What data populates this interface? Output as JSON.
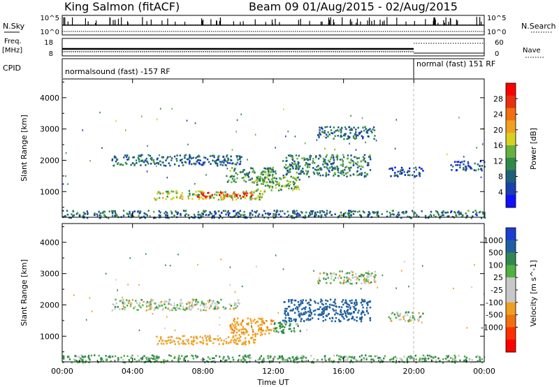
{
  "header": {
    "station": "King Salmon (fitACF)",
    "beam_info": "Beam 09 01/Aug/2015 - 02/Aug/2015"
  },
  "noise_panel": {
    "left_label": "N.Sky",
    "right_label": "N.Search",
    "tick_top": "10^5",
    "tick_bottom": "10^0"
  },
  "freq_panel": {
    "left_label_line1": "Freq.",
    "left_label_line2": "[MHz]",
    "right_label": "Nave",
    "left_ticks": [
      "18",
      "8"
    ],
    "right_ticks": [
      "60",
      "0"
    ]
  },
  "cpid_panel": {
    "label": "CPID",
    "modes": [
      {
        "start_hour": 0,
        "end_hour": 20,
        "text": "normalsound (fast) -157 RF"
      },
      {
        "start_hour": 20,
        "end_hour": 24,
        "text": "normal (fast) 151 RF"
      }
    ]
  },
  "chart_data": [
    {
      "type": "heatmap",
      "title": "",
      "parameter": "Power",
      "ylabel": "Slant Range [km]",
      "xlabel": "Time UT",
      "xlim": [
        0,
        24
      ],
      "ylim": [
        180,
        4600
      ],
      "x_ticks": [
        "00:00",
        "04:00",
        "08:00",
        "12:00",
        "16:00",
        "20:00",
        "00:00"
      ],
      "y_ticks": [
        1000,
        2000,
        3000,
        4000
      ],
      "colorbar": {
        "label": "Power [dB]",
        "ticks": [
          4,
          8,
          12,
          16,
          20,
          24,
          28
        ],
        "colors": [
          "#1010ff",
          "#1a3fb0",
          "#205f78",
          "#2f8a4a",
          "#66b040",
          "#d8d020",
          "#f0a020",
          "#f07010",
          "#e83010",
          "#ff0000"
        ]
      },
      "echo_regions": [
        {
          "t_start": 5.2,
          "t_end": 11.5,
          "range_start": 760,
          "range_end": 1050,
          "value": 16
        },
        {
          "t_start": 7.6,
          "t_end": 10.8,
          "range_start": 850,
          "range_end": 1000,
          "value": 28
        },
        {
          "t_start": 11.0,
          "t_end": 13.5,
          "range_start": 1050,
          "range_end": 1500,
          "value": 14
        },
        {
          "t_start": 2.8,
          "t_end": 10.2,
          "range_start": 1850,
          "range_end": 2200,
          "value": 8
        },
        {
          "t_start": 9.3,
          "t_end": 12.2,
          "range_start": 1300,
          "range_end": 1800,
          "value": 12
        },
        {
          "t_start": 12.5,
          "t_end": 17.5,
          "range_start": 1500,
          "range_end": 2200,
          "value": 10
        },
        {
          "t_start": 14.5,
          "t_end": 17.8,
          "range_start": 2700,
          "range_end": 3100,
          "value": 8
        },
        {
          "t_start": 18.5,
          "t_end": 20.5,
          "range_start": 1500,
          "range_end": 1800,
          "value": 6
        },
        {
          "t_start": 22.0,
          "t_end": 24.0,
          "range_start": 1700,
          "range_end": 2000,
          "value": 6
        },
        {
          "t_start": 0.0,
          "t_end": 24.0,
          "range_start": 180,
          "range_end": 420,
          "value": 8
        }
      ]
    },
    {
      "type": "heatmap",
      "title": "",
      "parameter": "Velocity",
      "ylabel": "Slant Range [km]",
      "xlabel": "Time UT",
      "xlim": [
        0,
        24
      ],
      "ylim": [
        180,
        4600
      ],
      "x_ticks": [
        "00:00",
        "04:00",
        "08:00",
        "12:00",
        "16:00",
        "20:00",
        "00:00"
      ],
      "y_ticks": [
        1000,
        2000,
        3000,
        4000
      ],
      "colorbar": {
        "label": "Velocity [m s^-1]",
        "ticks": [
          1000,
          500,
          100,
          25,
          -25,
          -100,
          -500,
          -1000
        ],
        "colors": [
          "#1a3fd0",
          "#2060a0",
          "#308850",
          "#50b040",
          "#c8c8c8",
          "#c8c8c8",
          "#f0a020",
          "#f07010",
          "#ff3000",
          "#ff0000"
        ]
      },
      "echo_regions": [
        {
          "t_start": 5.2,
          "t_end": 11.0,
          "range_start": 760,
          "range_end": 1050,
          "value": -200
        },
        {
          "t_start": 9.5,
          "t_end": 12.0,
          "range_start": 1050,
          "range_end": 1600,
          "value": -400
        },
        {
          "t_start": 12.0,
          "t_end": 13.5,
          "range_start": 1100,
          "range_end": 1500,
          "value": 100
        },
        {
          "t_start": 2.8,
          "t_end": 10.2,
          "range_start": 1850,
          "range_end": 2200,
          "value": 0
        },
        {
          "t_start": 12.5,
          "t_end": 17.5,
          "range_start": 1500,
          "range_end": 2200,
          "value": 700
        },
        {
          "t_start": 14.5,
          "t_end": 17.8,
          "range_start": 2700,
          "range_end": 3100,
          "value": 0
        },
        {
          "t_start": 18.5,
          "t_end": 20.5,
          "range_start": 1500,
          "range_end": 1800,
          "value": 0
        },
        {
          "t_start": 0.0,
          "t_end": 24.0,
          "range_start": 180,
          "range_end": 420,
          "value": 100
        }
      ]
    }
  ]
}
